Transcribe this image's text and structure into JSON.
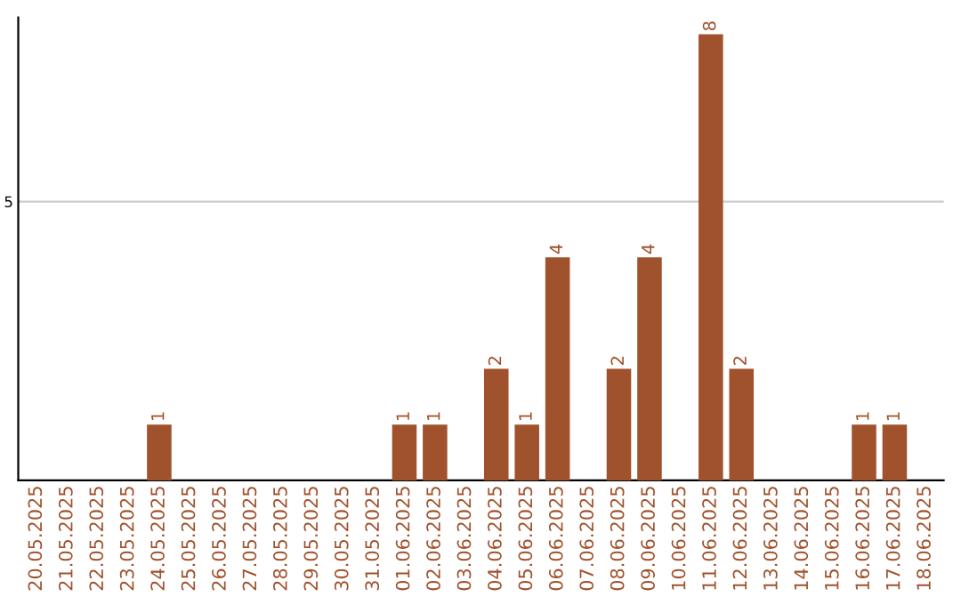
{
  "chart_data": {
    "type": "bar",
    "categories": [
      "20.05.2025",
      "21.05.2025",
      "22.05.2025",
      "23.05.2025",
      "24.05.2025",
      "25.05.2025",
      "26.05.2025",
      "27.05.2025",
      "28.05.2025",
      "29.05.2025",
      "30.05.2025",
      "31.05.2025",
      "01.06.2025",
      "02.06.2025",
      "03.06.2025",
      "04.06.2025",
      "05.06.2025",
      "06.06.2025",
      "07.06.2025",
      "08.06.2025",
      "09.06.2025",
      "10.06.2025",
      "11.06.2025",
      "12.06.2025",
      "13.06.2025",
      "14.06.2025",
      "15.06.2025",
      "16.06.2025",
      "17.06.2025",
      "18.06.2025"
    ],
    "values": [
      0,
      0,
      0,
      0,
      1,
      0,
      0,
      0,
      0,
      0,
      0,
      0,
      1,
      1,
      0,
      2,
      1,
      4,
      0,
      2,
      4,
      0,
      8,
      2,
      0,
      0,
      0,
      1,
      1,
      0
    ],
    "value_labels": [
      null,
      null,
      null,
      null,
      "1",
      null,
      null,
      null,
      null,
      null,
      null,
      null,
      "1",
      "1",
      null,
      "2",
      "1",
      "4",
      null,
      "2",
      "4",
      null,
      "8",
      "2",
      null,
      null,
      null,
      "1",
      "1",
      null
    ],
    "color": "#a0522d",
    "ylim": [
      0,
      8.3
    ],
    "yticks": [
      5
    ],
    "grid": "y"
  }
}
